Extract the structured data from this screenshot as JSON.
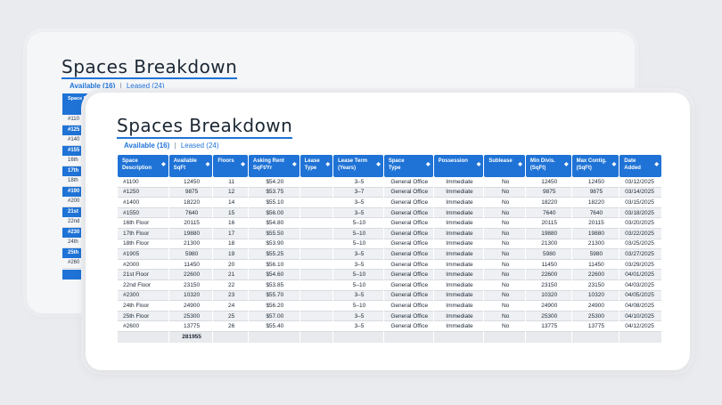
{
  "back_card": {
    "title": "Spaces Breakdown",
    "tabs": {
      "available": "Available (16)",
      "separator": "|",
      "leased": "Leased (24)"
    },
    "header_label": "Space Descr",
    "rows": [
      {
        "text": "#110",
        "highlight": false
      },
      {
        "text": "#125",
        "highlight": true
      },
      {
        "text": "#140",
        "highlight": false
      },
      {
        "text": "#155",
        "highlight": true
      },
      {
        "text": "16th",
        "highlight": false
      },
      {
        "text": "17th",
        "highlight": true
      },
      {
        "text": "18th",
        "highlight": false
      },
      {
        "text": "#190",
        "highlight": true
      },
      {
        "text": "#200",
        "highlight": false
      },
      {
        "text": "21st",
        "highlight": true
      },
      {
        "text": "22nd",
        "highlight": false
      },
      {
        "text": "#230",
        "highlight": true
      },
      {
        "text": "24th",
        "highlight": false
      },
      {
        "text": "25th",
        "highlight": true
      },
      {
        "text": "#260",
        "highlight": false
      }
    ]
  },
  "front_card": {
    "title": "Spaces Breakdown",
    "tabs": {
      "available": "Available (16)",
      "separator": "|",
      "leased": "Leased (24)"
    },
    "columns": [
      {
        "line1": "Space",
        "line2": "Description"
      },
      {
        "line1": "Available",
        "line2": "SqFt"
      },
      {
        "line1": "Floors",
        "line2": ""
      },
      {
        "line1": "Asking Rent",
        "line2": "SqFt/Yr"
      },
      {
        "line1": "Lease",
        "line2": "Type"
      },
      {
        "line1": "Lease Term",
        "line2": "(Years)"
      },
      {
        "line1": "Space",
        "line2": "Type"
      },
      {
        "line1": "Possession",
        "line2": ""
      },
      {
        "line1": "Sublease",
        "line2": ""
      },
      {
        "line1": "Min Divis.",
        "line2": "(SqFt)"
      },
      {
        "line1": "Max Contig.",
        "line2": "(SqFt)"
      },
      {
        "line1": "Date",
        "line2": "Added"
      }
    ],
    "rows": [
      [
        "#1100",
        "12450",
        "11",
        "$54.20",
        "",
        "3–5",
        "General Office",
        "Immediate",
        "No",
        "12450",
        "12450",
        "03/12/2025"
      ],
      [
        "#1250",
        "9875",
        "12",
        "$53.75",
        "",
        "3–7",
        "General Office",
        "Immediate",
        "No",
        "9875",
        "9875",
        "03/14/2025"
      ],
      [
        "#1400",
        "18220",
        "14",
        "$55.10",
        "",
        "3–5",
        "General Office",
        "Immediate",
        "No",
        "18220",
        "18220",
        "03/15/2025"
      ],
      [
        "#1550",
        "7640",
        "15",
        "$56.00",
        "",
        "3–5",
        "General Office",
        "Immediate",
        "No",
        "7640",
        "7640",
        "03/18/2025"
      ],
      [
        "16th Floor",
        "20115",
        "16",
        "$54.80",
        "",
        "5–10",
        "General Office",
        "Immediate",
        "No",
        "20115",
        "20115",
        "03/20/2025"
      ],
      [
        "17th Floor",
        "19880",
        "17",
        "$55.50",
        "",
        "5–10",
        "General Office",
        "Immediate",
        "No",
        "19880",
        "19880",
        "03/22/2025"
      ],
      [
        "18th Floor",
        "21300",
        "18",
        "$53.90",
        "",
        "5–10",
        "General Office",
        "Immediate",
        "No",
        "21300",
        "21300",
        "03/25/2025"
      ],
      [
        "#1905",
        "5980",
        "19",
        "$55.25",
        "",
        "3–5",
        "General Office",
        "Immediate",
        "No",
        "5980",
        "5980",
        "03/27/2025"
      ],
      [
        "#2000",
        "11450",
        "20",
        "$56.10",
        "",
        "3–5",
        "General Office",
        "Immediate",
        "No",
        "11450",
        "11450",
        "03/29/2025"
      ],
      [
        "21st Floor",
        "22600",
        "21",
        "$54.60",
        "",
        "5–10",
        "General Office",
        "Immediate",
        "No",
        "22600",
        "22600",
        "04/01/2025"
      ],
      [
        "22nd Floor",
        "23150",
        "22",
        "$53.85",
        "",
        "5–10",
        "General Office",
        "Immediate",
        "No",
        "23150",
        "23150",
        "04/03/2025"
      ],
      [
        "#2300",
        "10320",
        "23",
        "$55.70",
        "",
        "3–5",
        "General Office",
        "Immediate",
        "No",
        "10320",
        "10320",
        "04/05/2025"
      ],
      [
        "24th Floor",
        "24900",
        "24",
        "$56.20",
        "",
        "5–10",
        "General Office",
        "Immediate",
        "No",
        "24900",
        "24900",
        "04/08/2025"
      ],
      [
        "25th Floor",
        "25300",
        "25",
        "$57.00",
        "",
        "3–5",
        "General Office",
        "Immediate",
        "No",
        "25300",
        "25300",
        "04/10/2025"
      ],
      [
        "#2600",
        "13775",
        "26",
        "$55.40",
        "",
        "3–5",
        "General Office",
        "Immediate",
        "No",
        "13775",
        "13775",
        "04/12/2025"
      ]
    ],
    "total_sqft": "281955"
  },
  "colors": {
    "accent": "#1f73d6",
    "title_text": "#1b2734",
    "background": "#e9ebef"
  },
  "icons": {
    "sort": "sort-arrow-icon"
  }
}
